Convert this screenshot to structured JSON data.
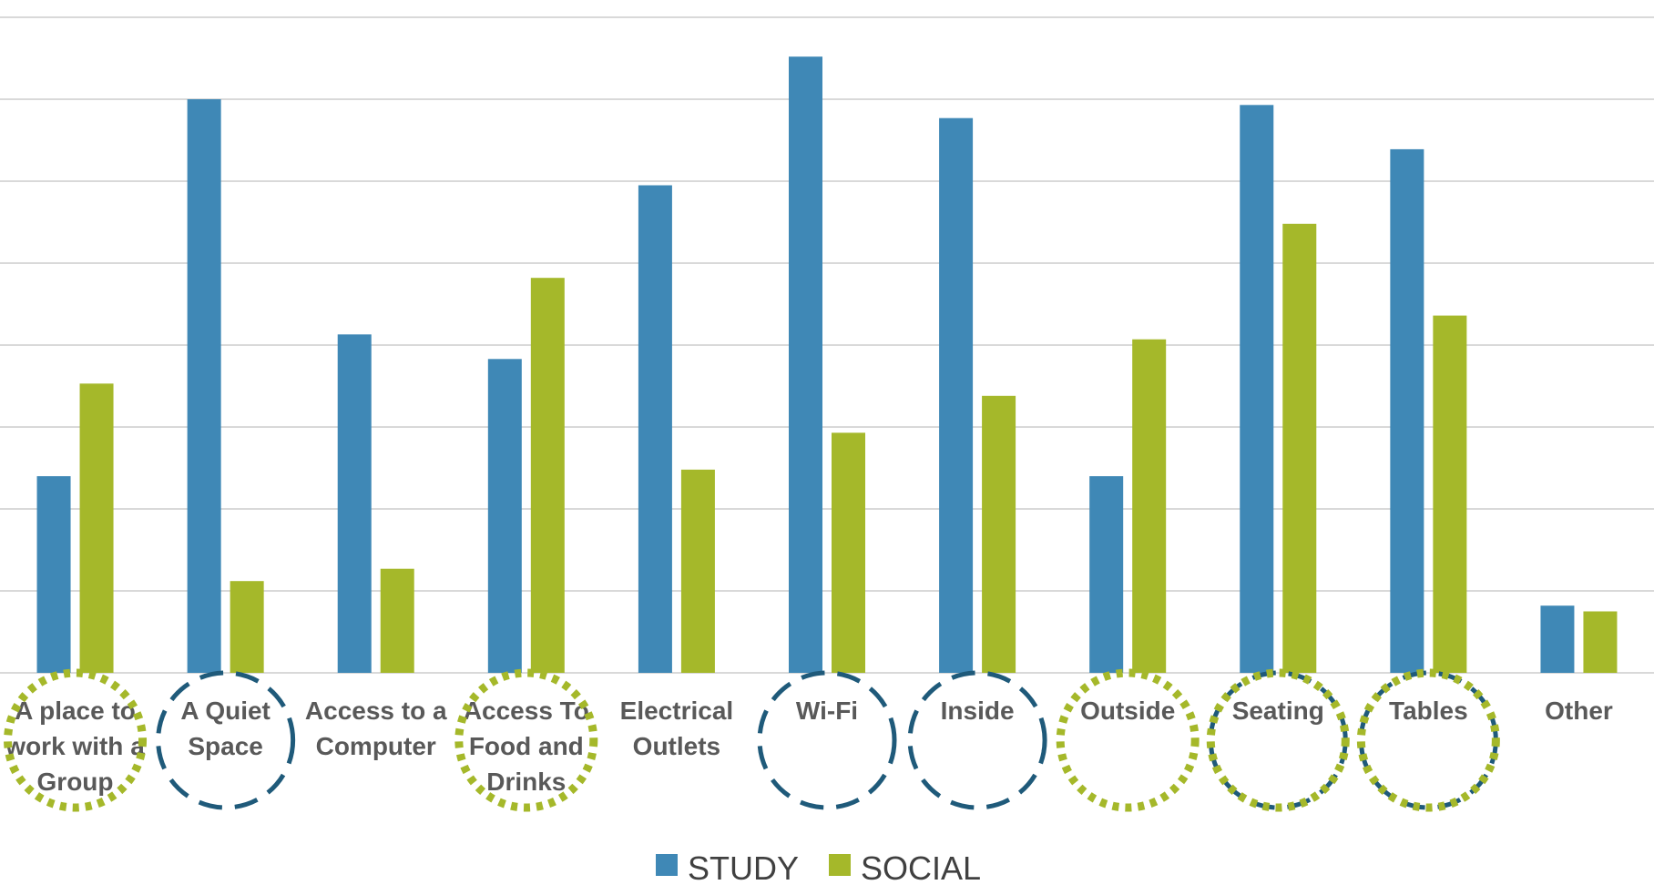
{
  "chart_data": {
    "type": "bar",
    "title": "",
    "xlabel": "",
    "ylabel": "",
    "ylim": [
      0,
      8
    ],
    "grid": true,
    "legend_position": "bottom",
    "categories": [
      [
        "A place to",
        "work with a",
        "Group"
      ],
      [
        "A Quiet",
        "Space"
      ],
      [
        "Access to a",
        "Computer"
      ],
      [
        "Access To",
        "Food and",
        "Drinks"
      ],
      [
        "Electrical",
        "Outlets"
      ],
      [
        "Wi-Fi"
      ],
      [
        "Inside"
      ],
      [
        "Outside"
      ],
      [
        "Seating"
      ],
      [
        "Tables"
      ],
      [
        "Other"
      ]
    ],
    "series": [
      {
        "name": "STUDY",
        "color": "#3f88b6",
        "values": [
          2.4,
          7.0,
          4.13,
          3.83,
          5.95,
          7.52,
          6.77,
          2.4,
          6.93,
          6.39,
          0.82
        ]
      },
      {
        "name": "SOCIAL",
        "color": "#a5b82a",
        "values": [
          3.53,
          1.12,
          1.27,
          4.82,
          2.48,
          2.93,
          3.38,
          4.07,
          5.48,
          4.36,
          0.75
        ]
      }
    ],
    "annotations": [
      {
        "category_index": 0,
        "type": "circle",
        "style": "dotted",
        "color": "#a5b82a"
      },
      {
        "category_index": 1,
        "type": "circle",
        "style": "dashed",
        "color": "#1f5a7a"
      },
      {
        "category_index": 3,
        "type": "circle",
        "style": "dotted",
        "color": "#a5b82a"
      },
      {
        "category_index": 5,
        "type": "circle",
        "style": "dashed",
        "color": "#1f5a7a"
      },
      {
        "category_index": 6,
        "type": "circle",
        "style": "dashed",
        "color": "#1f5a7a"
      },
      {
        "category_index": 7,
        "type": "circle",
        "style": "dotted",
        "color": "#a5b82a"
      },
      {
        "category_index": 8,
        "type": "circle",
        "style": "dashed",
        "color": "#1f5a7a"
      },
      {
        "category_index": 8,
        "type": "circle",
        "style": "dotted",
        "color": "#a5b82a"
      },
      {
        "category_index": 9,
        "type": "circle",
        "style": "dashed",
        "color": "#1f5a7a"
      },
      {
        "category_index": 9,
        "type": "circle",
        "style": "dotted",
        "color": "#a5b82a"
      }
    ]
  }
}
